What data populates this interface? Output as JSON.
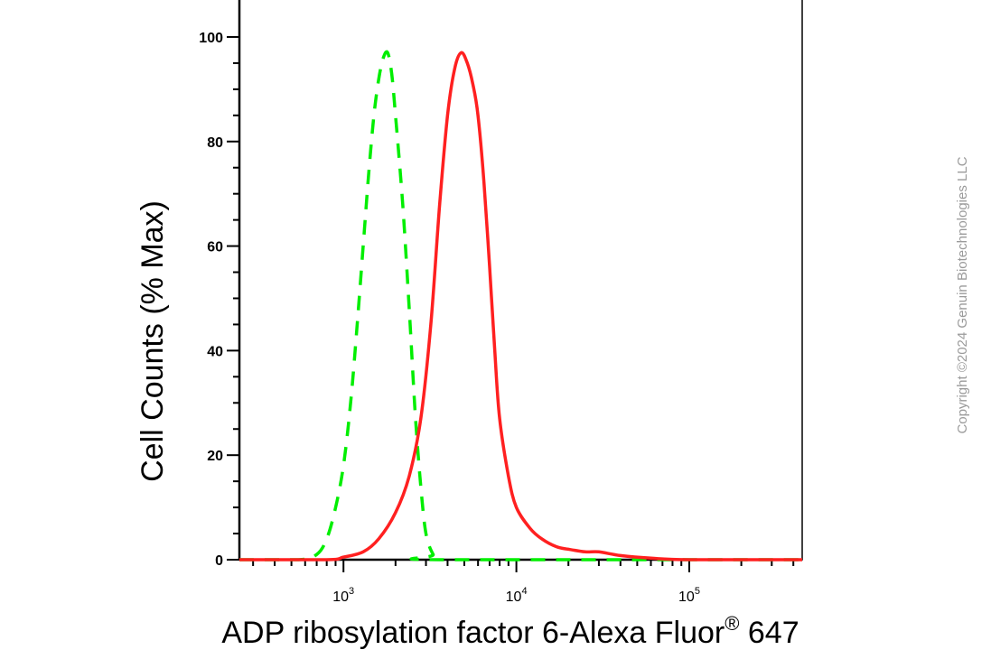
{
  "chart_data": {
    "type": "line",
    "title": "",
    "xlabel": "ADP ribosylation factor 6-Alexa Fluor",
    "xlabel_superscript": "®",
    "xlabel_suffix": " 647",
    "ylabel": "Cell Counts (% Max)",
    "x_scale": "log",
    "xlim": [
      250,
      450000
    ],
    "ylim": [
      0,
      105
    ],
    "y_ticks": [
      0,
      20,
      40,
      60,
      80,
      100
    ],
    "x_ticks": [
      {
        "value": 1000,
        "base": "10",
        "exp": "3"
      },
      {
        "value": 10000,
        "base": "10",
        "exp": "4"
      },
      {
        "value": 100000,
        "base": "10",
        "exp": "5"
      }
    ],
    "grid": false,
    "legend": "none",
    "series": [
      {
        "style": "dashed",
        "color": "#00ee00",
        "points": [
          [
            250,
            0
          ],
          [
            550,
            0
          ],
          [
            700,
            1
          ],
          [
            800,
            4
          ],
          [
            900,
            10
          ],
          [
            1000,
            18
          ],
          [
            1100,
            30
          ],
          [
            1200,
            45
          ],
          [
            1300,
            60
          ],
          [
            1400,
            74
          ],
          [
            1500,
            85
          ],
          [
            1600,
            92
          ],
          [
            1700,
            96
          ],
          [
            1800,
            97
          ],
          [
            1900,
            93
          ],
          [
            2000,
            85
          ],
          [
            2200,
            68
          ],
          [
            2400,
            48
          ],
          [
            2600,
            28
          ],
          [
            2800,
            14
          ],
          [
            3000,
            5
          ],
          [
            3300,
            1
          ],
          [
            3600,
            0
          ],
          [
            450000,
            0
          ]
        ]
      },
      {
        "style": "solid",
        "color": "#ff2020",
        "points": [
          [
            250,
            0
          ],
          [
            800,
            0
          ],
          [
            1000,
            0.5
          ],
          [
            1300,
            1.5
          ],
          [
            1600,
            4
          ],
          [
            2000,
            9
          ],
          [
            2400,
            16
          ],
          [
            2800,
            27
          ],
          [
            3200,
            45
          ],
          [
            3600,
            68
          ],
          [
            4000,
            85
          ],
          [
            4400,
            94
          ],
          [
            4800,
            97
          ],
          [
            5200,
            95
          ],
          [
            5600,
            91
          ],
          [
            6000,
            85
          ],
          [
            6500,
            72
          ],
          [
            7000,
            56
          ],
          [
            7500,
            40
          ],
          [
            8000,
            27
          ],
          [
            9000,
            16
          ],
          [
            10000,
            10
          ],
          [
            12000,
            6
          ],
          [
            14000,
            4
          ],
          [
            17000,
            2.5
          ],
          [
            20000,
            2
          ],
          [
            25000,
            1.5
          ],
          [
            30000,
            1.5
          ],
          [
            40000,
            0.8
          ],
          [
            60000,
            0.3
          ],
          [
            100000,
            0
          ],
          [
            450000,
            0
          ]
        ]
      }
    ]
  },
  "copyright": "Copyright ©2024 Genuin Biotechnologies LLC",
  "colors": {
    "axis": "#000000",
    "copyright": "#9a9a9a"
  }
}
